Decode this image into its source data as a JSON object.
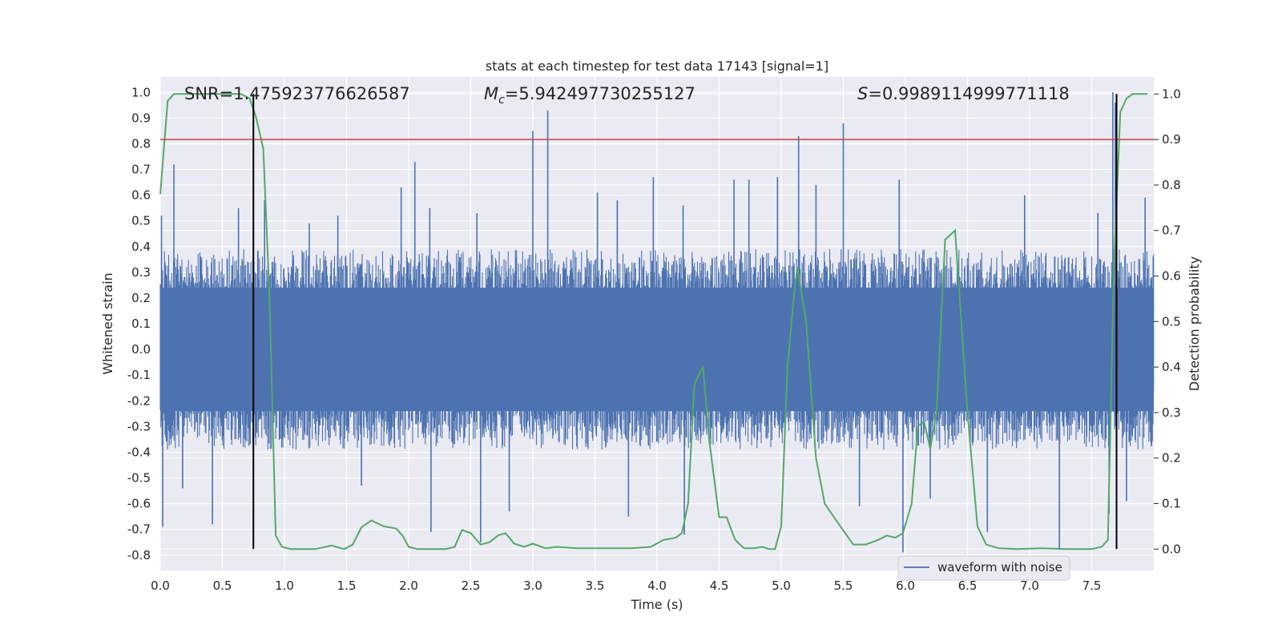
{
  "chart_data": {
    "type": "line",
    "title": "stats at each timestep for test data 17143 [signal=1]",
    "xlabel": "Time (s)",
    "ylabel": "Whitened strain",
    "y2label": "Detection probability",
    "xlim": [
      0.0,
      8.0
    ],
    "ylim": [
      -0.86,
      1.06
    ],
    "y2lim": [
      -0.047,
      1.0375
    ],
    "x_ticks": [
      "0.0",
      "0.5",
      "1.0",
      "1.5",
      "2.0",
      "2.5",
      "3.0",
      "3.5",
      "4.0",
      "4.5",
      "5.0",
      "5.5",
      "6.0",
      "6.5",
      "7.0",
      "7.5"
    ],
    "y_ticks": [
      "-0.8",
      "-0.7",
      "-0.6",
      "-0.5",
      "-0.4",
      "-0.3",
      "-0.2",
      "-0.1",
      "0.0",
      "0.1",
      "0.2",
      "0.3",
      "0.4",
      "0.5",
      "0.6",
      "0.7",
      "0.8",
      "0.9",
      "1.0"
    ],
    "y2_ticks": [
      "0.0",
      "0.1",
      "0.2",
      "0.3",
      "0.4",
      "0.5",
      "0.6",
      "0.7",
      "0.8",
      "0.9",
      "1.0"
    ],
    "grid": true,
    "legend_position": "lower-right",
    "annotations": {
      "snr": "SNR=1.475923776626587",
      "mc_symbol": "M",
      "mc_sub": "c",
      "mc_value": "=5.942497730255127",
      "s_symbol": "S",
      "s_value": "=0.9989114999771118"
    },
    "threshold_line": {
      "axis": "y2",
      "value": 0.9,
      "color": "#c44e52"
    },
    "vertical_lines": [
      0.75,
      7.7
    ],
    "series": [
      {
        "name": "waveform with noise",
        "axis": "y",
        "color": "#4c72b0",
        "style": "dense-noise",
        "envelope_abs_typical": 0.3,
        "peaks": [
          {
            "x": 0.01,
            "y": 0.52
          },
          {
            "x": 0.02,
            "y": -0.69
          },
          {
            "x": 0.11,
            "y": 0.72
          },
          {
            "x": 0.18,
            "y": -0.54
          },
          {
            "x": 0.42,
            "y": -0.68
          },
          {
            "x": 0.63,
            "y": 0.55
          },
          {
            "x": 0.84,
            "y": 0.58
          },
          {
            "x": 1.2,
            "y": 0.49
          },
          {
            "x": 1.43,
            "y": 0.52
          },
          {
            "x": 1.62,
            "y": -0.53
          },
          {
            "x": 1.94,
            "y": 0.63
          },
          {
            "x": 2.05,
            "y": 0.73
          },
          {
            "x": 2.17,
            "y": 0.55
          },
          {
            "x": 2.18,
            "y": -0.71
          },
          {
            "x": 2.55,
            "y": 0.53
          },
          {
            "x": 2.58,
            "y": -0.75
          },
          {
            "x": 2.81,
            "y": -0.63
          },
          {
            "x": 3.0,
            "y": 0.85
          },
          {
            "x": 3.12,
            "y": 0.93
          },
          {
            "x": 3.52,
            "y": 0.61
          },
          {
            "x": 3.68,
            "y": 0.58
          },
          {
            "x": 3.77,
            "y": -0.65
          },
          {
            "x": 3.97,
            "y": 0.67
          },
          {
            "x": 4.21,
            "y": 0.56
          },
          {
            "x": 4.22,
            "y": -0.72
          },
          {
            "x": 4.62,
            "y": 0.66
          },
          {
            "x": 4.74,
            "y": 0.66
          },
          {
            "x": 4.97,
            "y": 0.67
          },
          {
            "x": 5.14,
            "y": 0.83
          },
          {
            "x": 5.28,
            "y": 0.64
          },
          {
            "x": 5.5,
            "y": 0.88
          },
          {
            "x": 5.63,
            "y": -0.61
          },
          {
            "x": 5.95,
            "y": 0.66
          },
          {
            "x": 5.98,
            "y": -0.79
          },
          {
            "x": 6.2,
            "y": -0.58
          },
          {
            "x": 6.66,
            "y": -0.71
          },
          {
            "x": 6.96,
            "y": 0.6
          },
          {
            "x": 7.24,
            "y": -0.78
          },
          {
            "x": 7.55,
            "y": 0.53
          },
          {
            "x": 7.64,
            "y": -0.64
          },
          {
            "x": 7.67,
            "y": 1.0
          },
          {
            "x": 7.69,
            "y": 0.96
          },
          {
            "x": 7.78,
            "y": -0.59
          },
          {
            "x": 7.93,
            "y": 0.59
          }
        ]
      },
      {
        "name": "",
        "axis": "y2",
        "color": "#55a868",
        "x": [
          0.0,
          0.06,
          0.11,
          0.3,
          0.5,
          0.65,
          0.72,
          0.77,
          0.83,
          0.88,
          0.93,
          0.98,
          1.05,
          1.25,
          1.38,
          1.48,
          1.55,
          1.62,
          1.7,
          1.8,
          1.9,
          1.95,
          2.0,
          2.07,
          2.15,
          2.3,
          2.37,
          2.43,
          2.5,
          2.58,
          2.65,
          2.72,
          2.78,
          2.85,
          2.93,
          3.0,
          3.1,
          3.2,
          3.35,
          3.5,
          3.8,
          3.95,
          4.05,
          4.15,
          4.2,
          4.25,
          4.3,
          4.33,
          4.37,
          4.42,
          4.5,
          4.56,
          4.63,
          4.7,
          4.78,
          4.85,
          4.9,
          4.95,
          5.0,
          5.05,
          5.1,
          5.13,
          5.2,
          5.28,
          5.35,
          5.45,
          5.58,
          5.68,
          5.78,
          5.85,
          5.92,
          5.98,
          6.05,
          6.1,
          6.15,
          6.2,
          6.25,
          6.32,
          6.4,
          6.5,
          6.58,
          6.65,
          6.75,
          6.9,
          7.1,
          7.3,
          7.5,
          7.58,
          7.63,
          7.68,
          7.73,
          7.78,
          7.83,
          7.88,
          7.95
        ],
        "values": [
          0.78,
          0.985,
          1.0,
          1.0,
          1.0,
          1.0,
          0.99,
          0.95,
          0.88,
          0.55,
          0.03,
          0.005,
          0.0,
          0.0,
          0.008,
          0.0,
          0.01,
          0.048,
          0.063,
          0.05,
          0.045,
          0.03,
          0.005,
          0.0,
          0.0,
          0.0,
          0.005,
          0.042,
          0.035,
          0.01,
          0.015,
          0.03,
          0.035,
          0.012,
          0.005,
          0.012,
          0.002,
          0.005,
          0.002,
          0.002,
          0.002,
          0.005,
          0.02,
          0.025,
          0.035,
          0.1,
          0.36,
          0.38,
          0.4,
          0.24,
          0.07,
          0.07,
          0.02,
          0.002,
          0.002,
          0.005,
          0.0,
          0.0,
          0.05,
          0.4,
          0.55,
          0.62,
          0.5,
          0.2,
          0.1,
          0.06,
          0.01,
          0.01,
          0.02,
          0.03,
          0.025,
          0.035,
          0.1,
          0.27,
          0.28,
          0.22,
          0.3,
          0.68,
          0.7,
          0.3,
          0.05,
          0.01,
          0.002,
          0.0,
          0.002,
          0.0,
          0.0,
          0.005,
          0.02,
          0.63,
          0.96,
          0.99,
          1.0,
          1.0,
          1.0
        ]
      }
    ]
  }
}
